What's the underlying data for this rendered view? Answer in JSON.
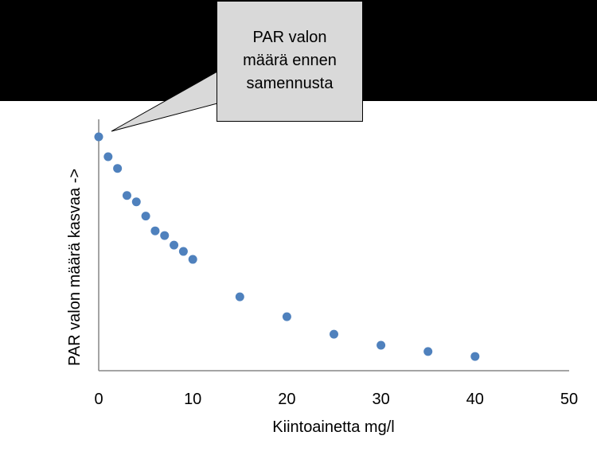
{
  "chart_data": {
    "type": "scatter",
    "title": "",
    "xlabel": "Kiintoainetta mg/l",
    "ylabel": "PAR valon määrä kasvaa ->",
    "xlim": [
      0,
      50
    ],
    "x_ticks": [
      "0",
      "10",
      "20",
      "30",
      "40",
      "50"
    ],
    "y_ticks_shown": false,
    "grid": false,
    "marker_color": "#4f81bd",
    "series": [
      {
        "x": [
          0,
          1,
          2,
          3,
          4,
          5,
          6,
          7,
          8,
          9,
          10,
          15,
          20,
          25,
          30,
          35,
          40
        ],
        "y": [
          100,
          91.5,
          86.5,
          74.9,
          72.2,
          66.1,
          59.8,
          57.8,
          53.7,
          51.0,
          47.6,
          31.6,
          23.1,
          15.6,
          10.9,
          8.2,
          6.1
        ]
      }
    ],
    "annotation": {
      "text": "PAR valon määrä ennen samennusta",
      "points_to_x": 0
    }
  },
  "colors": {
    "band": "#000000",
    "callout_fill": "#d9d9d9",
    "axis": "#868686"
  }
}
